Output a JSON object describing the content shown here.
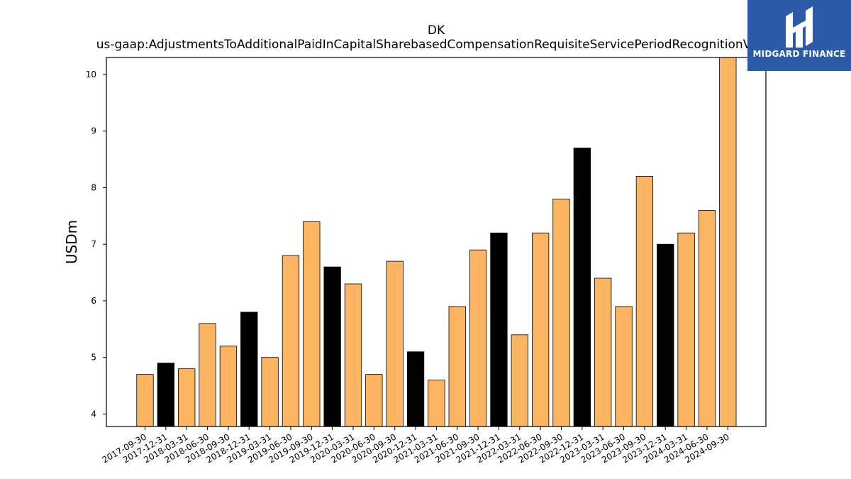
{
  "chart_data": {
    "type": "bar",
    "title": [
      "DK",
      "us-gaap:AdjustmentsToAdditionalPaidInCapitalSharebasedCompensationRequisiteServicePeriodRecognitionValue"
    ],
    "xlabel": "",
    "ylabel": "USDm",
    "ylim": [
      3.78,
      10.3
    ],
    "yticks": [
      4,
      5,
      6,
      7,
      8,
      9,
      10
    ],
    "categories": [
      "2017-09-30",
      "2017-12-31",
      "2018-03-31",
      "2018-06-30",
      "2018-09-30",
      "2018-12-31",
      "2019-03-31",
      "2019-06-30",
      "2019-09-30",
      "2019-12-31",
      "2020-03-31",
      "2020-06-30",
      "2020-09-30",
      "2020-12-31",
      "2021-03-31",
      "2021-06-30",
      "2021-09-30",
      "2021-12-31",
      "2022-03-31",
      "2022-06-30",
      "2022-09-30",
      "2022-12-31",
      "2023-03-31",
      "2023-06-30",
      "2023-09-30",
      "2023-12-31",
      "2024-03-31",
      "2024-06-30",
      "2024-09-30"
    ],
    "values": [
      4.7,
      4.9,
      4.8,
      5.6,
      5.2,
      5.8,
      5.0,
      6.8,
      7.4,
      6.6,
      6.3,
      4.7,
      6.7,
      5.1,
      4.6,
      5.9,
      6.9,
      7.2,
      5.4,
      7.2,
      7.8,
      8.7,
      6.4,
      5.9,
      8.2,
      7.0,
      7.2,
      7.6,
      10.3
    ],
    "colors": {
      "quarter": "#fdb462",
      "year_end": "#000000",
      "edge": "#000000"
    },
    "grid": false,
    "legend": "none"
  },
  "logo": {
    "text": "MIDGARD FINANCE",
    "background": "#2b5aa8"
  }
}
